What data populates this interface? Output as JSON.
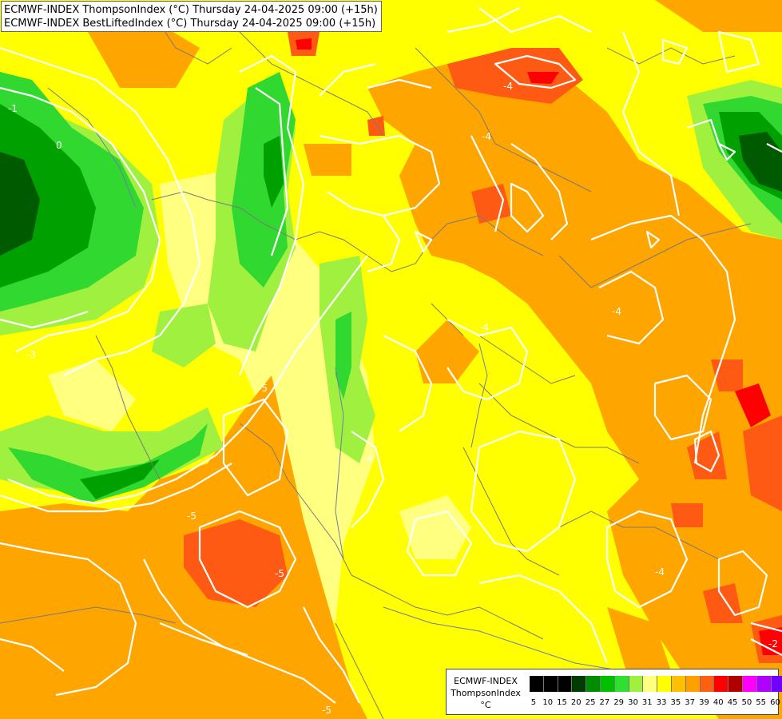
{
  "titles": {
    "line1": "ECMWF-INDEX ThompsonIndex (°C) Thursday 24-04-2025 09:00 (+15h)",
    "line2": "ECMWF-INDEX BestLiftedIndex (°C) Thursday 24-04-2025 09:00 (+15h)"
  },
  "legend": {
    "model": "ECMWF-INDEX",
    "parameter": "ThompsonIndex",
    "unit": "°C",
    "ticks": [
      "5",
      "10",
      "15",
      "20",
      "25",
      "27",
      "29",
      "30",
      "31",
      "33",
      "35",
      "37",
      "39",
      "40",
      "45",
      "50",
      "55",
      "60"
    ],
    "colors": [
      "#000000",
      "#000000",
      "#000000",
      "#003c00",
      "#008c00",
      "#00c000",
      "#30e030",
      "#a0f040",
      "#ffff80",
      "#ffff00",
      "#ffc000",
      "#ffa000",
      "#ff6010",
      "#ff0000",
      "#b00000",
      "#ff00ff",
      "#b000ff",
      "#7000ff",
      "#0000ff"
    ]
  },
  "contour_labels": [
    {
      "text": "-4",
      "id": "c1"
    },
    {
      "text": "-4",
      "id": "c2"
    },
    {
      "text": "-4",
      "id": "c3"
    },
    {
      "text": "-4",
      "id": "c4"
    },
    {
      "text": "-5",
      "id": "c5"
    },
    {
      "text": "-5",
      "id": "c6"
    },
    {
      "text": "-5",
      "id": "c7"
    },
    {
      "text": "-5",
      "id": "c8"
    },
    {
      "text": "-4",
      "id": "c9"
    },
    {
      "text": "-4",
      "id": "c10"
    },
    {
      "text": "-3",
      "id": "c11"
    },
    {
      "text": "-2",
      "id": "c12"
    },
    {
      "text": "-1",
      "id": "c13"
    },
    {
      "text": "0",
      "id": "c14"
    }
  ]
}
